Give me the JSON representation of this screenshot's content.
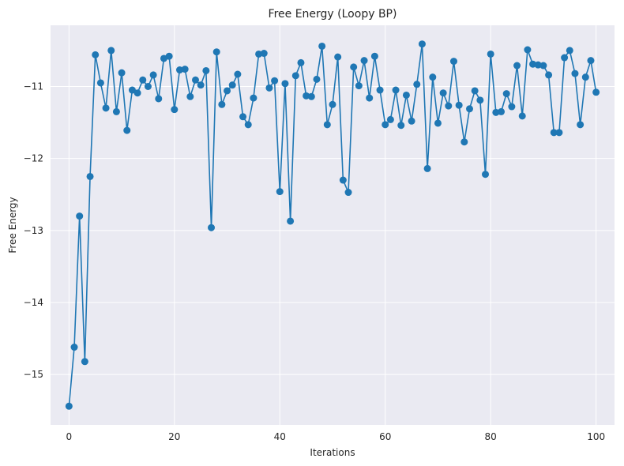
{
  "chart_data": {
    "type": "line",
    "title": "Free Energy (Loopy BP)",
    "xlabel": "Iterations",
    "ylabel": "Free Energy",
    "xlim": [
      -3.5,
      103.5
    ],
    "ylim": [
      -15.7,
      -10.15
    ],
    "xticks": [
      0,
      20,
      40,
      60,
      80,
      100
    ],
    "yticks": [
      -15,
      -14,
      -13,
      -12,
      -11
    ],
    "xtick_labels": [
      "0",
      "20",
      "40",
      "60",
      "80",
      "100"
    ],
    "ytick_labels": [
      "−15",
      "−14",
      "−13",
      "−12",
      "−11"
    ],
    "grid": true,
    "colors": {
      "series": "#1f77b4",
      "plot_bg": "#eaeaf2",
      "grid": "#ffffff",
      "text": "#262626"
    },
    "series": [
      {
        "name": "",
        "marker": "circle",
        "x": [
          0,
          1,
          2,
          3,
          4,
          5,
          6,
          7,
          8,
          9,
          10,
          11,
          12,
          13,
          14,
          15,
          16,
          17,
          18,
          19,
          20,
          21,
          22,
          23,
          24,
          25,
          26,
          27,
          28,
          29,
          30,
          31,
          32,
          33,
          34,
          35,
          36,
          37,
          38,
          39,
          40,
          41,
          42,
          43,
          44,
          45,
          46,
          47,
          48,
          49,
          50,
          51,
          52,
          53,
          54,
          55,
          56,
          57,
          58,
          59,
          60,
          61,
          62,
          63,
          64,
          65,
          66,
          67,
          68,
          69,
          70,
          71,
          72,
          73,
          74,
          75,
          76,
          77,
          78,
          79,
          80,
          81,
          82,
          83,
          84,
          85,
          86,
          87,
          88,
          89,
          90,
          91,
          92,
          93,
          94,
          95,
          96,
          97,
          98,
          99,
          100
        ],
        "y": [
          -15.44,
          -14.62,
          -12.8,
          -14.82,
          -12.25,
          -10.56,
          -10.95,
          -11.3,
          -10.5,
          -11.35,
          -10.81,
          -11.61,
          -11.05,
          -11.09,
          -10.91,
          -11.0,
          -10.84,
          -11.17,
          -10.61,
          -10.58,
          -11.32,
          -10.77,
          -10.76,
          -11.14,
          -10.91,
          -10.98,
          -10.78,
          -12.96,
          -10.52,
          -11.25,
          -11.06,
          -10.98,
          -10.83,
          -11.42,
          -11.53,
          -11.16,
          -10.55,
          -10.54,
          -11.02,
          -10.92,
          -12.46,
          -10.96,
          -12.87,
          -10.85,
          -10.67,
          -11.13,
          -11.14,
          -10.9,
          -10.44,
          -11.53,
          -11.25,
          -10.59,
          -12.3,
          -12.47,
          -10.73,
          -10.99,
          -10.64,
          -11.16,
          -10.58,
          -11.05,
          -11.53,
          -11.46,
          -11.05,
          -11.54,
          -11.12,
          -11.48,
          -10.97,
          -10.41,
          -12.14,
          -10.87,
          -11.51,
          -11.09,
          -11.27,
          -10.65,
          -11.26,
          -11.77,
          -11.31,
          -11.06,
          -11.19,
          -12.22,
          -10.55,
          -11.36,
          -11.35,
          -11.1,
          -11.28,
          -10.71,
          -11.41,
          -10.49,
          -10.69,
          -10.7,
          -10.71,
          -10.84,
          -11.64,
          -11.64,
          -10.6,
          -10.5,
          -10.82,
          -11.53,
          -10.87,
          -10.64,
          -11.08
        ]
      }
    ]
  }
}
